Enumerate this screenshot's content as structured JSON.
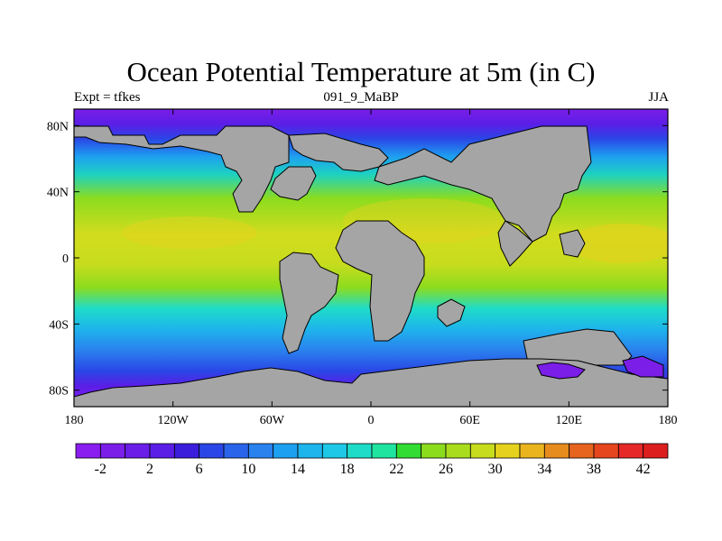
{
  "title": "Ocean Potential Temperature at 5m (in C)",
  "subtitle_left": "Expt = tfkes",
  "subtitle_center": "091_9_MaBP",
  "subtitle_right": "JJA",
  "axes": {
    "x_ticks": [
      "180",
      "120W",
      "60W",
      "0",
      "60E",
      "120E",
      "180"
    ],
    "x_tick_values": [
      -180,
      -120,
      -60,
      0,
      60,
      120,
      180
    ],
    "y_ticks": [
      "80N",
      "40N",
      "0",
      "40S",
      "80S"
    ],
    "y_tick_values": [
      80,
      40,
      0,
      -40,
      -80
    ],
    "lon_range": [
      -180,
      180
    ],
    "lat_range": [
      -90,
      90
    ]
  },
  "colorbar": {
    "labels": [
      "-2",
      "2",
      "6",
      "10",
      "14",
      "18",
      "22",
      "26",
      "30",
      "34",
      "38",
      "42"
    ],
    "colors": [
      "#8a1ef0",
      "#7a1ee8",
      "#6a1ee8",
      "#5a1ee6",
      "#3a1edc",
      "#2a46e6",
      "#2a64ea",
      "#2a82ee",
      "#1ea0f0",
      "#1eb4ec",
      "#1ec8e6",
      "#1edcc8",
      "#1ee4a0",
      "#32dc32",
      "#8cdc1e",
      "#aadc1e",
      "#c8dc1e",
      "#e6d21e",
      "#eab41e",
      "#e68c1e",
      "#e6641e",
      "#e6461e",
      "#e62828",
      "#dc1e1e"
    ]
  },
  "land_color": "#a5a5a5"
}
